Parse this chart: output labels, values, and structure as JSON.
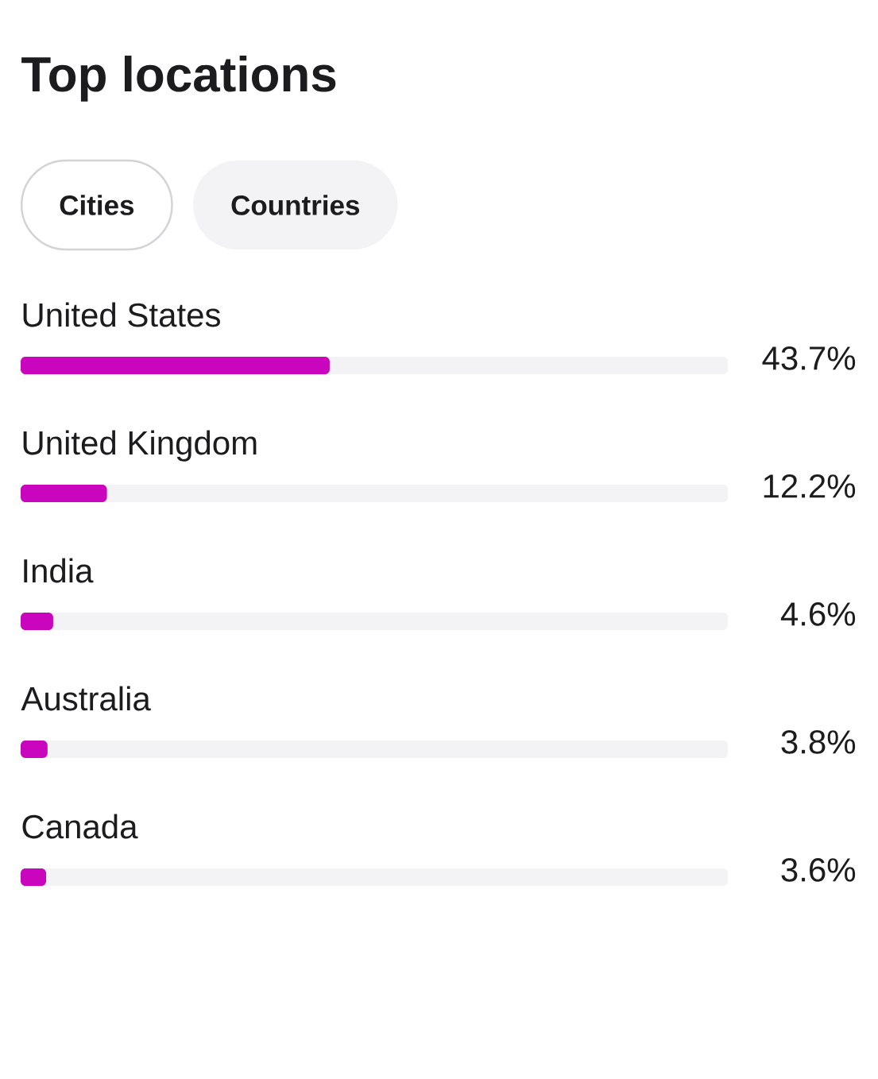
{
  "chart_data": {
    "type": "bar",
    "orientation": "horizontal",
    "title": "Top locations",
    "annotations": [
      "Cities",
      "Countries"
    ],
    "categories": [
      "United States",
      "United Kingdom",
      "India",
      "Australia",
      "Canada"
    ],
    "values": [
      43.7,
      12.2,
      4.6,
      3.8,
      3.6
    ],
    "value_labels": [
      "43.7%",
      "12.2%",
      "4.6%",
      "3.8%",
      "3.6%"
    ],
    "color": "#c905be",
    "xlim": [
      0,
      100
    ],
    "tick_labels": "y"
  }
}
